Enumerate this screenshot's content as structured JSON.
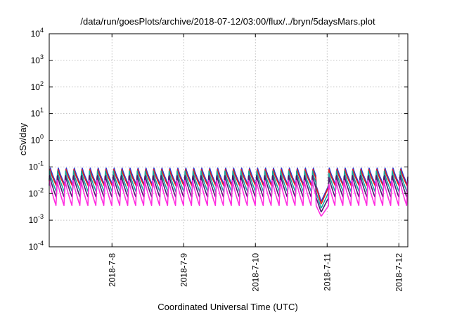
{
  "chart_data": {
    "type": "line",
    "title": "/data/run/goesPlots/archive/2018-07-12/03:00/flux/../bryn/5daysMars.plot",
    "xlabel": "Coordinated Universal Time (UTC)",
    "ylabel": "cSv/day",
    "yscale": "log",
    "ylim": [
      0.0001,
      10000
    ],
    "y_ticks": [
      {
        "base": "10",
        "exp": "-4",
        "value": 0.0001
      },
      {
        "base": "10",
        "exp": "-3",
        "value": 0.001
      },
      {
        "base": "10",
        "exp": "-2",
        "value": 0.01
      },
      {
        "base": "10",
        "exp": "-1",
        "value": 0.1
      },
      {
        "base": "10",
        "exp": "0",
        "value": 1
      },
      {
        "base": "10",
        "exp": "1",
        "value": 10
      },
      {
        "base": "10",
        "exp": "2",
        "value": 100
      },
      {
        "base": "10",
        "exp": "3",
        "value": 1000
      },
      {
        "base": "10",
        "exp": "4",
        "value": 10000
      }
    ],
    "xlim": [
      "2018-07-07T03:00",
      "2018-07-12T03:00"
    ],
    "x_ticks": [
      "2018-7-8",
      "2018-7-9",
      "2018-7-10",
      "2018-7-11",
      "2018-7-12"
    ],
    "grid": true,
    "series": [
      {
        "color": "#2a3fd6",
        "peak": 0.1,
        "trough": 0.02,
        "dip_min": 0.005
      },
      {
        "color": "#e11d1d",
        "peak": 0.085,
        "trough": 0.018,
        "dip_min": 0.004
      },
      {
        "color": "#18a9a0",
        "peak": 0.07,
        "trough": 0.011,
        "dip_min": 0.0028
      },
      {
        "color": "#4a1c6e",
        "peak": 0.055,
        "trough": 0.007,
        "dip_min": 0.002
      },
      {
        "color": "#ff2ee0",
        "peak": 0.035,
        "trough": 0.0035,
        "dip_min": 0.0014
      }
    ],
    "cycles_per_day": 9,
    "dip": {
      "start": "2018-07-10T20:20",
      "min": "2018-07-10T22:00",
      "end": "2018-07-11T00:30"
    }
  }
}
